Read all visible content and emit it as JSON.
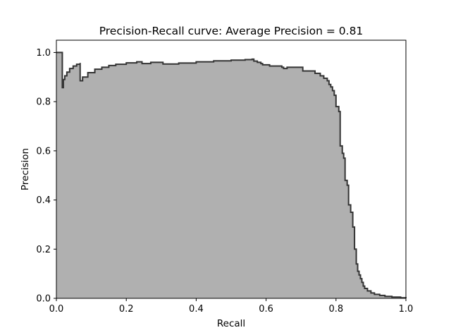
{
  "chart_data": {
    "type": "area",
    "title": "Precision-Recall curve: Average Precision = 0.81",
    "xlabel": "Recall",
    "ylabel": "Precision",
    "xlim": [
      0.0,
      1.0
    ],
    "ylim": [
      0.0,
      1.05
    ],
    "x_ticks": [
      0.0,
      0.2,
      0.4,
      0.6,
      0.8,
      1.0
    ],
    "x_tick_labels": [
      "0.0",
      "0.2",
      "0.4",
      "0.6",
      "0.8",
      "1.0"
    ],
    "y_ticks": [
      0.0,
      0.2,
      0.4,
      0.6,
      0.8,
      1.0
    ],
    "y_tick_labels": [
      "0.0",
      "0.2",
      "0.4",
      "0.6",
      "0.8",
      "1.0"
    ],
    "grid": false,
    "step": true,
    "fill_color": "#b0b0b0",
    "line_color": "#333333",
    "series": [
      {
        "recall": [
          0.0,
          0.017,
          0.017,
          0.02,
          0.024,
          0.03,
          0.038,
          0.048,
          0.058,
          0.068,
          0.068,
          0.075,
          0.09,
          0.11,
          0.13,
          0.15,
          0.17,
          0.2,
          0.23,
          0.245,
          0.245,
          0.27,
          0.305,
          0.305,
          0.35,
          0.4,
          0.45,
          0.5,
          0.54,
          0.56,
          0.565,
          0.575,
          0.585,
          0.59,
          0.61,
          0.625,
          0.645,
          0.65,
          0.66,
          0.7,
          0.705,
          0.73,
          0.74,
          0.755,
          0.765,
          0.775,
          0.78,
          0.785,
          0.79,
          0.795,
          0.8,
          0.8,
          0.808,
          0.812,
          0.818,
          0.822,
          0.826,
          0.832,
          0.836,
          0.842,
          0.848,
          0.853,
          0.858,
          0.862,
          0.866,
          0.87,
          0.874,
          0.878,
          0.882,
          0.89,
          0.9,
          0.91,
          0.925,
          0.94,
          0.96,
          0.985,
          1.0
        ],
        "precision": [
          1.0,
          1.0,
          0.857,
          0.89,
          0.905,
          0.92,
          0.935,
          0.945,
          0.952,
          0.958,
          0.885,
          0.9,
          0.918,
          0.932,
          0.94,
          0.947,
          0.952,
          0.958,
          0.962,
          0.965,
          0.955,
          0.96,
          0.963,
          0.953,
          0.957,
          0.962,
          0.966,
          0.969,
          0.971,
          0.973,
          0.965,
          0.96,
          0.955,
          0.95,
          0.945,
          0.945,
          0.94,
          0.935,
          0.94,
          0.94,
          0.925,
          0.925,
          0.915,
          0.905,
          0.895,
          0.885,
          0.87,
          0.86,
          0.845,
          0.826,
          0.82,
          0.78,
          0.76,
          0.62,
          0.59,
          0.57,
          0.48,
          0.46,
          0.38,
          0.35,
          0.29,
          0.2,
          0.14,
          0.11,
          0.095,
          0.08,
          0.065,
          0.05,
          0.04,
          0.03,
          0.022,
          0.016,
          0.012,
          0.008,
          0.005,
          0.002,
          0.0
        ]
      }
    ]
  }
}
